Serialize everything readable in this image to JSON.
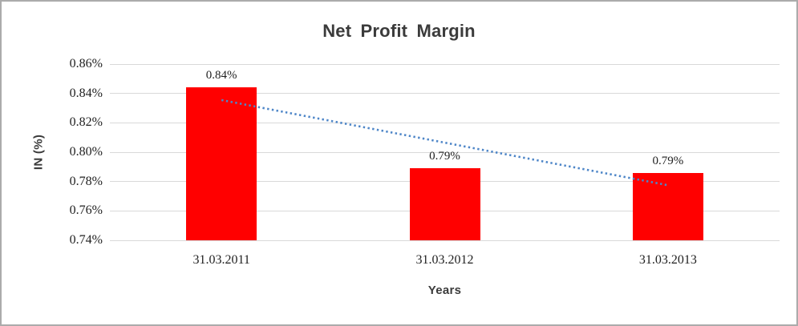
{
  "window": {
    "background_color": "#ffffff",
    "border_color": "#ababab"
  },
  "chart_data": {
    "type": "bar",
    "title": "Net Profit Margin",
    "xlabel": "Years",
    "ylabel": "IN (%)",
    "categories": [
      "31.03.2011",
      "31.03.2012",
      "31.03.2013"
    ],
    "series": [
      {
        "name": "Net Profit Margin",
        "values": [
          0.844,
          0.789,
          0.786
        ]
      }
    ],
    "data_labels": [
      "0.84%",
      "0.79%",
      "0.79%"
    ],
    "y_ticks": [
      "0.86%",
      "0.84%",
      "0.82%",
      "0.80%",
      "0.78%",
      "0.76%",
      "0.74%"
    ],
    "y_tick_values": [
      0.86,
      0.84,
      0.82,
      0.8,
      0.78,
      0.76,
      0.74
    ],
    "ylim": [
      0.74,
      0.86
    ],
    "grid": true,
    "legend": false,
    "bar_color": "#ff0000",
    "gridline_color": "#d9d9d9",
    "title_color": "#3b3b3b",
    "tick_color": "#1f1f1f",
    "trendline": {
      "type": "linear",
      "style": "dotted",
      "color": "#4e86c8",
      "start_category_index": 0,
      "end_category_index": 2,
      "start_value": 0.8355,
      "end_value": 0.7775
    }
  }
}
